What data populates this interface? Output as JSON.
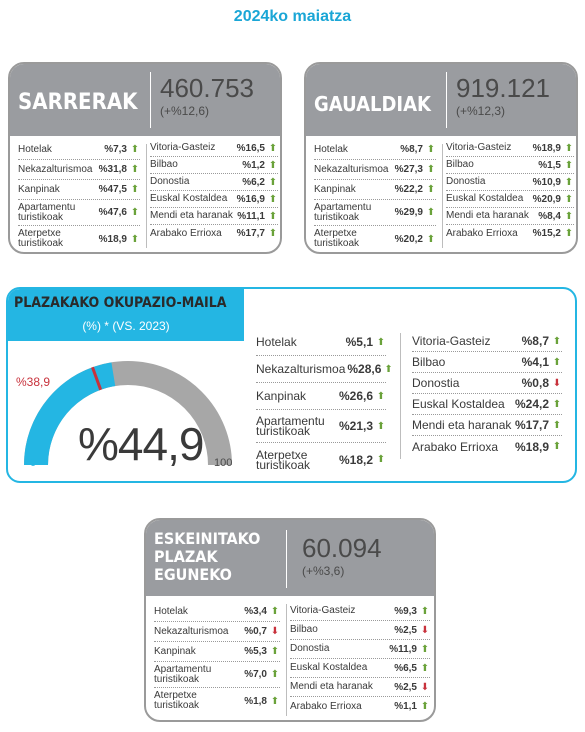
{
  "title": "2024ko maiatza",
  "arrivals": {
    "label": "SARRERAK",
    "total": "460.753",
    "change": "(+%12,6)",
    "left": [
      {
        "label": "Hotelak",
        "value": "%7,3",
        "dir": "up"
      },
      {
        "label": "Nekazalturismoa",
        "value": "%31,8",
        "dir": "up"
      },
      {
        "label": "Kanpinak",
        "value": "%47,5",
        "dir": "up"
      },
      {
        "label": "Apartamentu turistikoak",
        "value": "%47,6",
        "dir": "up"
      },
      {
        "label": "Aterpetxe turistikoak",
        "value": "%18,9",
        "dir": "up"
      }
    ],
    "right": [
      {
        "label": "Vitoria-Gasteiz",
        "value": "%16,5",
        "dir": "up"
      },
      {
        "label": "Bilbao",
        "value": "%1,2",
        "dir": "up"
      },
      {
        "label": "Donostia",
        "value": "%6,2",
        "dir": "up"
      },
      {
        "label": "Euskal Kostaldea",
        "value": "%16,9",
        "dir": "up"
      },
      {
        "label": "Mendi eta haranak",
        "value": "%11,1",
        "dir": "up"
      },
      {
        "label": "Arabako Errioxa",
        "value": "%17,7",
        "dir": "up"
      }
    ]
  },
  "overnights": {
    "label": "GAUALDIAK",
    "total": "919.121",
    "change": "(+%12,3)",
    "left": [
      {
        "label": "Hotelak",
        "value": "%8,7",
        "dir": "up"
      },
      {
        "label": "Nekazalturismoa",
        "value": "%27,3",
        "dir": "up"
      },
      {
        "label": "Kanpinak",
        "value": "%22,2",
        "dir": "up"
      },
      {
        "label": "Apartamentu turistikoak",
        "value": "%29,9",
        "dir": "up"
      },
      {
        "label": "Aterpetxe turistikoak",
        "value": "%20,2",
        "dir": "up"
      }
    ],
    "right": [
      {
        "label": "Vitoria-Gasteiz",
        "value": "%18,9",
        "dir": "up"
      },
      {
        "label": "Bilbao",
        "value": "%1,5",
        "dir": "up"
      },
      {
        "label": "Donostia",
        "value": "%10,9",
        "dir": "up"
      },
      {
        "label": "Euskal Kostaldea",
        "value": "%20,9",
        "dir": "up"
      },
      {
        "label": "Mendi eta haranak",
        "value": "%8,4",
        "dir": "up"
      },
      {
        "label": "Arabako Errioxa",
        "value": "%15,2",
        "dir": "up"
      }
    ]
  },
  "occupancy": {
    "title": "PLAZAKAKO OKUPAZIO-MAILA",
    "subtitle": "(%) * (VS. 2023)",
    "current": "%44,9",
    "previous": "%38,9",
    "current_value": 44.9,
    "previous_value": 38.9,
    "min": "0",
    "max": "100",
    "colors": {
      "fill": "#24b6e3",
      "track": "#a7a7a7",
      "marker": "#c8323c"
    },
    "left": [
      {
        "label": "Hotelak",
        "value": "%5,1",
        "dir": "up"
      },
      {
        "label": "Nekazalturismoa",
        "value": "%28,6",
        "dir": "up"
      },
      {
        "label": "Kanpinak",
        "value": "%26,6",
        "dir": "up"
      },
      {
        "label": "Apartamentu turistikoak",
        "value": "%21,3",
        "dir": "up"
      },
      {
        "label": "Aterpetxe turistikoak",
        "value": "%18,2",
        "dir": "up"
      }
    ],
    "right": [
      {
        "label": "Vitoria-Gasteiz",
        "value": "%8,7",
        "dir": "up"
      },
      {
        "label": "Bilbao",
        "value": "%4,1",
        "dir": "up"
      },
      {
        "label": "Donostia",
        "value": "%0,8",
        "dir": "down"
      },
      {
        "label": "Euskal Kostaldea",
        "value": "%24,2",
        "dir": "up"
      },
      {
        "label": "Mendi eta haranak",
        "value": "%17,7",
        "dir": "up"
      },
      {
        "label": "Arabako Errioxa",
        "value": "%18,9",
        "dir": "up"
      }
    ]
  },
  "places": {
    "label_lines": [
      "ESKEINITAKO",
      "PLAZAK",
      "EGUNEKO"
    ],
    "total": "60.094",
    "change": "(+%3,6)",
    "left": [
      {
        "label": "Hotelak",
        "value": "%3,4",
        "dir": "up"
      },
      {
        "label": "Nekazalturismoa",
        "value": "%0,7",
        "dir": "down"
      },
      {
        "label": "Kanpinak",
        "value": "%5,3",
        "dir": "up"
      },
      {
        "label": "Apartamentu turistikoak",
        "value": "%7,0",
        "dir": "up"
      },
      {
        "label": "Aterpetxe turistikoak",
        "value": "%1,8",
        "dir": "up"
      }
    ],
    "right": [
      {
        "label": "Vitoria-Gasteiz",
        "value": "%9,3",
        "dir": "up"
      },
      {
        "label": "Bilbao",
        "value": "%2,5",
        "dir": "down"
      },
      {
        "label": "Donostia",
        "value": "%11,9",
        "dir": "up"
      },
      {
        "label": "Euskal Kostaldea",
        "value": "%6,5",
        "dir": "up"
      },
      {
        "label": "Mendi eta haranak",
        "value": "%2,5",
        "dir": "down"
      },
      {
        "label": "Arabako Errioxa",
        "value": "%1,1",
        "dir": "up"
      }
    ]
  }
}
